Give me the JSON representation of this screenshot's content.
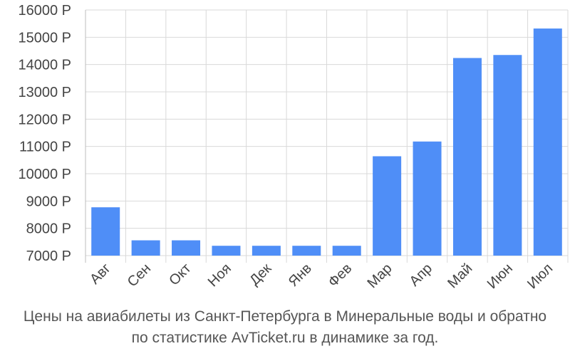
{
  "chart_data": {
    "type": "bar",
    "categories": [
      "Авг",
      "Сен",
      "Окт",
      "Ноя",
      "Дек",
      "Янв",
      "Фев",
      "Мар",
      "Апр",
      "Май",
      "Июн",
      "Июл"
    ],
    "values": [
      8770,
      7560,
      7560,
      7360,
      7360,
      7360,
      7360,
      10640,
      11180,
      14240,
      14350,
      15320
    ],
    "ylim": [
      7000,
      16000
    ],
    "yticks": [
      7000,
      8000,
      9000,
      10000,
      11000,
      12000,
      13000,
      14000,
      15000,
      16000
    ],
    "ytick_suffix": " Р",
    "bar_color": "#4f8ef7",
    "grid": true,
    "caption_line1": "Цены на авиабилеты из Санкт-Петербурга в Минеральные воды и обратно",
    "caption_line2": "по статистике AvTicket.ru в динамике за год."
  }
}
